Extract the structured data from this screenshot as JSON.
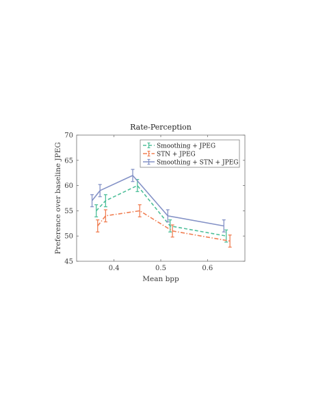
{
  "chart_data": {
    "type": "line",
    "title": "Rate-Perception",
    "xlabel": "Mean bpp",
    "ylabel": "Preference over baseline JPEG",
    "xlim": [
      0.32,
      0.68
    ],
    "ylim": [
      45,
      70
    ],
    "xticks": [
      0.4,
      0.5,
      0.6
    ],
    "yticks": [
      45,
      50,
      55,
      60,
      65,
      70
    ],
    "xtick_labels": [
      "0.4",
      "0.5",
      "0.6"
    ],
    "ytick_labels": [
      "45",
      "50",
      "55",
      "60",
      "65",
      "70"
    ],
    "grid": false,
    "legend_position": "top-right",
    "series": [
      {
        "name": "Smoothing + JPEG",
        "color": "#4dbf99",
        "line_style": "dashed",
        "x": [
          0.362,
          0.382,
          0.45,
          0.52,
          0.64
        ],
        "y": [
          55.0,
          57.0,
          60.0,
          52.0,
          50.0
        ],
        "error": [
          1.2,
          1.2,
          1.2,
          1.2,
          1.2
        ]
      },
      {
        "name": "STN + JPEG",
        "color": "#f07e52",
        "line_style": "dashdot",
        "x": [
          0.365,
          0.382,
          0.455,
          0.525,
          0.648
        ],
        "y": [
          52.0,
          54.0,
          55.0,
          51.0,
          49.0
        ],
        "error": [
          1.2,
          1.2,
          1.2,
          1.2,
          1.2
        ]
      },
      {
        "name": "Smoothing + STN + JPEG",
        "color": "#8391c6",
        "line_style": "solid",
        "x": [
          0.353,
          0.37,
          0.44,
          0.515,
          0.635
        ],
        "y": [
          57.0,
          59.0,
          62.0,
          54.0,
          52.0
        ],
        "error": [
          1.2,
          1.2,
          1.2,
          1.2,
          1.2
        ]
      }
    ]
  }
}
